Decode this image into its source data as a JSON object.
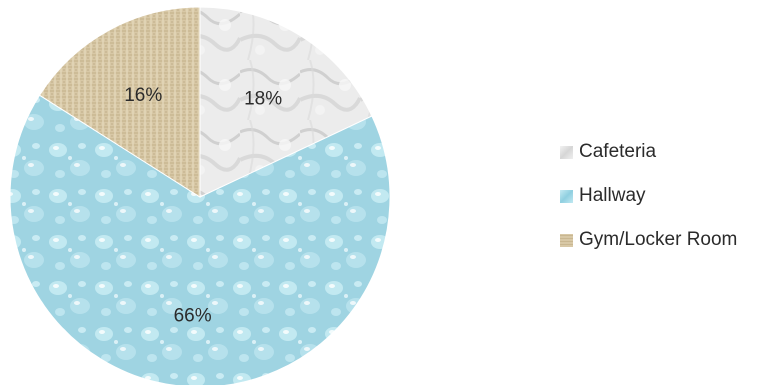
{
  "chart_data": {
    "type": "pie",
    "categories": [
      "Cafeteria",
      "Hallway",
      "Gym/Locker Room"
    ],
    "values": [
      18,
      66,
      16
    ],
    "data_labels": [
      "18%",
      "66%",
      "16%"
    ],
    "colors": [
      "#e6e6e6",
      "#a9dbe8",
      "#d9c9a6"
    ],
    "start_angle_deg": 0,
    "direction": "clockwise",
    "legend_position": "right"
  },
  "legend": {
    "items": [
      {
        "label": "Cafeteria",
        "color": "#e6e6e6"
      },
      {
        "label": "Hallway",
        "color": "#a9dbe8"
      },
      {
        "label": "Gym/Locker Room",
        "color": "#d9c9a6"
      }
    ]
  }
}
